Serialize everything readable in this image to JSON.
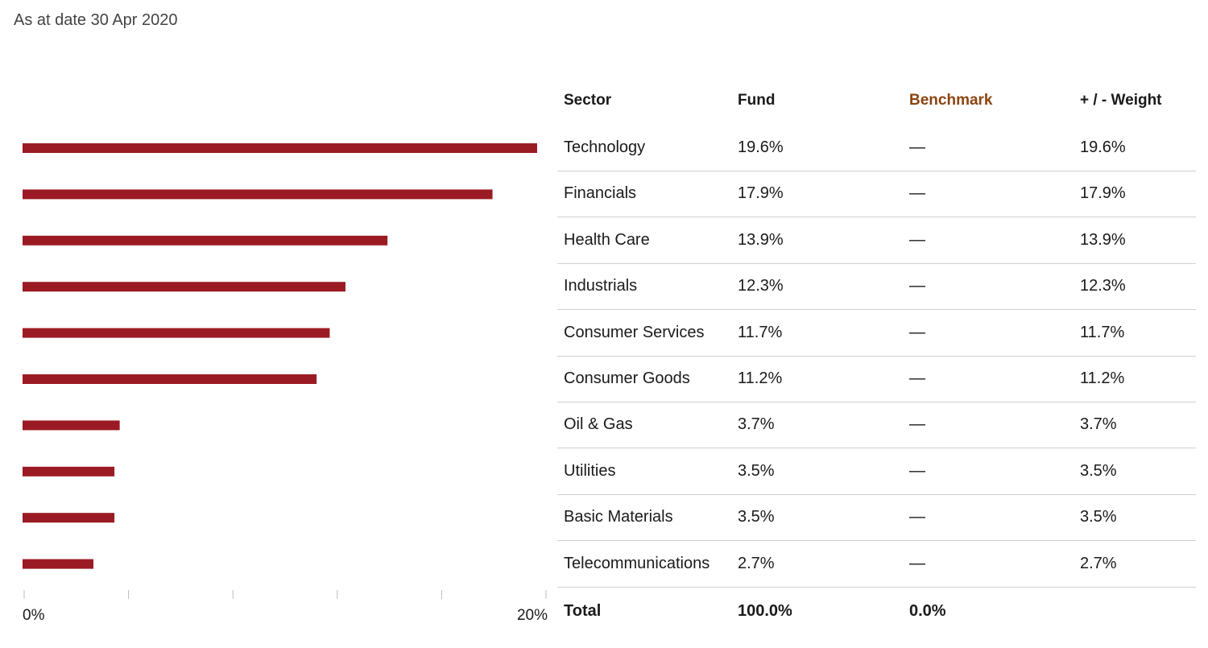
{
  "as_at": "As at date 30 Apr 2020",
  "colors": {
    "bar": "#9b1b24",
    "benchmark_header": "#8a4512",
    "divider": "#cfcfcf"
  },
  "table": {
    "headers": {
      "sector": "Sector",
      "fund": "Fund",
      "benchmark": "Benchmark",
      "weight": "+ / - Weight"
    },
    "rows": [
      {
        "sector": "Technology",
        "fund": "19.6%",
        "benchmark": "—",
        "weight": "19.6%"
      },
      {
        "sector": "Financials",
        "fund": "17.9%",
        "benchmark": "—",
        "weight": "17.9%"
      },
      {
        "sector": "Health Care",
        "fund": "13.9%",
        "benchmark": "—",
        "weight": "13.9%"
      },
      {
        "sector": "Industrials",
        "fund": "12.3%",
        "benchmark": "—",
        "weight": "12.3%"
      },
      {
        "sector": "Consumer Services",
        "fund": "11.7%",
        "benchmark": "—",
        "weight": "11.7%"
      },
      {
        "sector": "Consumer Goods",
        "fund": "11.2%",
        "benchmark": "—",
        "weight": "11.2%"
      },
      {
        "sector": "Oil & Gas",
        "fund": "3.7%",
        "benchmark": "—",
        "weight": "3.7%"
      },
      {
        "sector": "Utilities",
        "fund": "3.5%",
        "benchmark": "—",
        "weight": "3.5%"
      },
      {
        "sector": "Basic Materials",
        "fund": "3.5%",
        "benchmark": "—",
        "weight": "3.5%"
      },
      {
        "sector": "Telecommunications",
        "fund": "2.7%",
        "benchmark": "—",
        "weight": "2.7%"
      }
    ],
    "total": {
      "label": "Total",
      "fund": "100.0%",
      "benchmark": "0.0%"
    }
  },
  "chart_data": {
    "type": "bar",
    "orientation": "horizontal",
    "categories": [
      "Technology",
      "Financials",
      "Health Care",
      "Industrials",
      "Consumer Services",
      "Consumer Goods",
      "Oil & Gas",
      "Utilities",
      "Basic Materials",
      "Telecommunications"
    ],
    "values": [
      19.6,
      17.9,
      13.9,
      12.3,
      11.7,
      11.2,
      3.7,
      3.5,
      3.5,
      2.7
    ],
    "xlim": [
      0,
      20
    ],
    "x_tick_labels": [
      "0%",
      "20%"
    ],
    "title": "",
    "xlabel": "",
    "ylabel": "",
    "grid": false
  }
}
